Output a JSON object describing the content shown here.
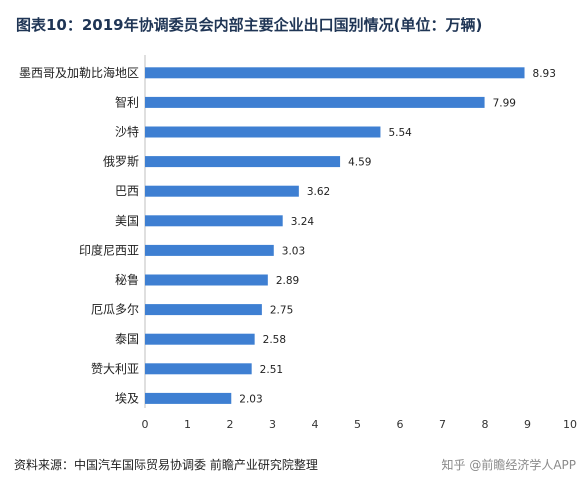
{
  "title": "图表10：2019年协调委员会内部主要企业出口国别情况(单位：万辆)",
  "source": "资料来源：中国汽车国际贸易协调委 前瞻产业研究院整理",
  "credit": "知乎 @前瞻经济学人APP",
  "colors": {
    "bar": "#3e7fd2",
    "title": "#1f3555"
  },
  "chart_data": {
    "type": "bar",
    "orientation": "horizontal",
    "title": "图表10：2019年协调委员会内部主要企业出口国别情况(单位：万辆)",
    "xlabel": "",
    "ylabel": "",
    "categories": [
      "墨西哥及加勒比海地区",
      "智利",
      "沙特",
      "俄罗斯",
      "巴西",
      "美国",
      "印度尼西亚",
      "秘鲁",
      "厄瓜多尔",
      "泰国",
      "赞大利亚",
      "埃及"
    ],
    "values": [
      8.93,
      7.99,
      5.54,
      4.59,
      3.62,
      3.24,
      3.03,
      2.89,
      2.75,
      2.58,
      2.51,
      2.03
    ],
    "xlim": [
      0,
      10
    ],
    "xticks": [
      0,
      1,
      2,
      3,
      4,
      5,
      6,
      7,
      8,
      9,
      10
    ],
    "grid": false,
    "legend": "none"
  }
}
